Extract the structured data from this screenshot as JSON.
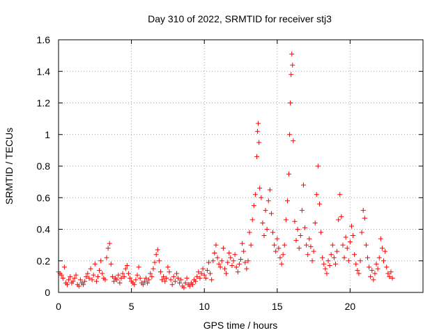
{
  "chart_data": {
    "type": "scatter",
    "title": "Day 310 of 2022, SRMTID for receiver stj3",
    "xlabel": "GPS time / hours",
    "ylabel": "SRMTID / TECUs",
    "xlim": [
      0,
      25
    ],
    "ylim": [
      0,
      1.6
    ],
    "xticks": [
      0,
      5,
      10,
      15,
      20
    ],
    "xtick_labels": [
      "0",
      "5",
      "10",
      "15",
      "20"
    ],
    "yticks": [
      0,
      0.2,
      0.4,
      0.6,
      0.8,
      1.0,
      1.2,
      1.4,
      1.6
    ],
    "ytick_labels": [
      "0",
      "0.2",
      "0.4",
      "0.6",
      "0.8",
      "1",
      "1.2",
      "1.4",
      "1.6"
    ],
    "grid": true,
    "marker": "plus",
    "series": [
      {
        "name": "SRMTID",
        "color": "#ff0000",
        "points": [
          [
            0.0,
            0.13
          ],
          [
            0.1,
            0.12
          ],
          [
            0.2,
            0.11
          ],
          [
            0.3,
            0.09
          ],
          [
            0.4,
            0.16
          ],
          [
            0.5,
            0.06
          ],
          [
            0.6,
            0.05
          ],
          [
            0.7,
            0.08
          ],
          [
            0.8,
            0.1
          ],
          [
            0.9,
            0.06
          ],
          [
            1.0,
            0.07
          ],
          [
            1.1,
            0.09
          ],
          [
            1.2,
            0.11
          ],
          [
            1.3,
            0.05
          ],
          [
            1.4,
            0.04
          ],
          [
            1.5,
            0.08
          ],
          [
            1.6,
            0.06
          ],
          [
            1.7,
            0.05
          ],
          [
            1.8,
            0.07
          ],
          [
            1.9,
            0.1
          ],
          [
            2.0,
            0.12
          ],
          [
            2.1,
            0.09
          ],
          [
            2.2,
            0.15
          ],
          [
            2.3,
            0.08
          ],
          [
            2.4,
            0.11
          ],
          [
            2.5,
            0.18
          ],
          [
            2.6,
            0.07
          ],
          [
            2.7,
            0.1
          ],
          [
            2.8,
            0.14
          ],
          [
            2.9,
            0.2
          ],
          [
            3.0,
            0.12
          ],
          [
            3.1,
            0.09
          ],
          [
            3.2,
            0.08
          ],
          [
            3.3,
            0.22
          ],
          [
            3.4,
            0.28
          ],
          [
            3.5,
            0.31
          ],
          [
            3.6,
            0.18
          ],
          [
            3.7,
            0.1
          ],
          [
            3.8,
            0.07
          ],
          [
            3.9,
            0.09
          ],
          [
            4.0,
            0.08
          ],
          [
            4.1,
            0.11
          ],
          [
            4.2,
            0.06
          ],
          [
            4.3,
            0.09
          ],
          [
            4.4,
            0.12
          ],
          [
            4.5,
            0.1
          ],
          [
            4.6,
            0.15
          ],
          [
            4.7,
            0.17
          ],
          [
            4.8,
            0.12
          ],
          [
            4.9,
            0.09
          ],
          [
            5.0,
            0.07
          ],
          [
            5.1,
            0.06
          ],
          [
            5.2,
            0.05
          ],
          [
            5.3,
            0.08
          ],
          [
            5.4,
            0.11
          ],
          [
            5.5,
            0.16
          ],
          [
            5.6,
            0.09
          ],
          [
            5.7,
            0.06
          ],
          [
            5.8,
            0.05
          ],
          [
            5.9,
            0.07
          ],
          [
            6.0,
            0.09
          ],
          [
            6.1,
            0.06
          ],
          [
            6.2,
            0.08
          ],
          [
            6.3,
            0.12
          ],
          [
            6.4,
            0.1
          ],
          [
            6.5,
            0.15
          ],
          [
            6.6,
            0.19
          ],
          [
            6.7,
            0.24
          ],
          [
            6.8,
            0.27
          ],
          [
            6.9,
            0.2
          ],
          [
            7.0,
            0.13
          ],
          [
            7.1,
            0.08
          ],
          [
            7.2,
            0.1
          ],
          [
            7.3,
            0.07
          ],
          [
            7.4,
            0.09
          ],
          [
            7.5,
            0.16
          ],
          [
            7.6,
            0.13
          ],
          [
            7.7,
            0.08
          ],
          [
            7.8,
            0.05
          ],
          [
            7.9,
            0.1
          ],
          [
            8.0,
            0.07
          ],
          [
            8.1,
            0.12
          ],
          [
            8.2,
            0.09
          ],
          [
            8.3,
            0.06
          ],
          [
            8.4,
            0.08
          ],
          [
            8.5,
            0.04
          ],
          [
            8.6,
            0.03
          ],
          [
            8.7,
            0.06
          ],
          [
            8.8,
            0.09
          ],
          [
            8.9,
            0.05
          ],
          [
            9.0,
            0.04
          ],
          [
            9.1,
            0.06
          ],
          [
            9.2,
            0.05
          ],
          [
            9.3,
            0.08
          ],
          [
            9.4,
            0.07
          ],
          [
            9.5,
            0.1
          ],
          [
            9.6,
            0.13
          ],
          [
            9.7,
            0.09
          ],
          [
            9.8,
            0.12
          ],
          [
            9.9,
            0.15
          ],
          [
            10.0,
            0.11
          ],
          [
            10.1,
            0.09
          ],
          [
            10.2,
            0.14
          ],
          [
            10.3,
            0.19
          ],
          [
            10.4,
            0.12
          ],
          [
            10.5,
            0.08
          ],
          [
            10.6,
            0.2
          ],
          [
            10.7,
            0.25
          ],
          [
            10.8,
            0.3
          ],
          [
            10.9,
            0.22
          ],
          [
            11.0,
            0.18
          ],
          [
            11.1,
            0.16
          ],
          [
            11.2,
            0.2
          ],
          [
            11.3,
            0.28
          ],
          [
            11.4,
            0.15
          ],
          [
            11.5,
            0.12
          ],
          [
            11.6,
            0.19
          ],
          [
            11.7,
            0.25
          ],
          [
            11.8,
            0.22
          ],
          [
            11.9,
            0.17
          ],
          [
            12.0,
            0.2
          ],
          [
            12.1,
            0.24
          ],
          [
            12.2,
            0.16
          ],
          [
            12.3,
            0.13
          ],
          [
            12.4,
            0.18
          ],
          [
            12.5,
            0.21
          ],
          [
            12.6,
            0.31
          ],
          [
            12.7,
            0.26
          ],
          [
            12.8,
            0.19
          ],
          [
            12.9,
            0.15
          ],
          [
            13.0,
            0.2
          ],
          [
            13.1,
            0.38
          ],
          [
            13.2,
            0.3
          ],
          [
            13.3,
            0.46
          ],
          [
            13.4,
            0.55
          ],
          [
            13.5,
            0.62
          ],
          [
            13.6,
            0.86
          ],
          [
            13.65,
            1.02
          ],
          [
            13.7,
            1.07
          ],
          [
            13.75,
            0.95
          ],
          [
            13.8,
            0.66
          ],
          [
            13.9,
            0.6
          ],
          [
            14.0,
            0.44
          ],
          [
            14.1,
            0.36
          ],
          [
            14.2,
            0.52
          ],
          [
            14.3,
            0.4
          ],
          [
            14.4,
            0.58
          ],
          [
            14.5,
            0.65
          ],
          [
            14.6,
            0.5
          ],
          [
            14.7,
            0.38
          ],
          [
            14.8,
            0.3
          ],
          [
            14.9,
            0.26
          ],
          [
            15.0,
            0.34
          ],
          [
            15.1,
            0.28
          ],
          [
            15.2,
            0.22
          ],
          [
            15.3,
            0.18
          ],
          [
            15.4,
            0.24
          ],
          [
            15.5,
            0.3
          ],
          [
            15.6,
            0.46
          ],
          [
            15.7,
            0.58
          ],
          [
            15.8,
            0.75
          ],
          [
            15.85,
            1.0
          ],
          [
            15.9,
            1.2
          ],
          [
            15.95,
            1.38
          ],
          [
            16.0,
            1.51
          ],
          [
            16.05,
            1.44
          ],
          [
            16.1,
            0.96
          ],
          [
            16.2,
            0.45
          ],
          [
            16.3,
            0.33
          ],
          [
            16.4,
            0.4
          ],
          [
            16.5,
            0.28
          ],
          [
            16.6,
            0.36
          ],
          [
            16.7,
            0.52
          ],
          [
            16.8,
            0.68
          ],
          [
            16.9,
            0.41
          ],
          [
            17.0,
            0.3
          ],
          [
            17.1,
            0.24
          ],
          [
            17.2,
            0.34
          ],
          [
            17.3,
            0.29
          ],
          [
            17.4,
            0.2
          ],
          [
            17.5,
            0.26
          ],
          [
            17.6,
            0.44
          ],
          [
            17.7,
            0.62
          ],
          [
            17.8,
            0.8
          ],
          [
            17.9,
            0.56
          ],
          [
            18.0,
            0.38
          ],
          [
            18.1,
            0.22
          ],
          [
            18.2,
            0.18
          ],
          [
            18.3,
            0.15
          ],
          [
            18.4,
            0.12
          ],
          [
            18.5,
            0.2
          ],
          [
            18.6,
            0.17
          ],
          [
            18.7,
            0.24
          ],
          [
            18.8,
            0.3
          ],
          [
            18.9,
            0.22
          ],
          [
            19.0,
            0.18
          ],
          [
            19.1,
            0.26
          ],
          [
            19.2,
            0.46
          ],
          [
            19.3,
            0.62
          ],
          [
            19.4,
            0.48
          ],
          [
            19.5,
            0.3
          ],
          [
            19.6,
            0.22
          ],
          [
            19.7,
            0.35
          ],
          [
            19.8,
            0.28
          ],
          [
            19.9,
            0.2
          ],
          [
            20.0,
            0.32
          ],
          [
            20.1,
            0.42
          ],
          [
            20.2,
            0.36
          ],
          [
            20.3,
            0.24
          ],
          [
            20.4,
            0.18
          ],
          [
            20.5,
            0.14
          ],
          [
            20.6,
            0.12
          ],
          [
            20.7,
            0.2
          ],
          [
            20.8,
            0.38
          ],
          [
            20.9,
            0.52
          ],
          [
            21.0,
            0.47
          ],
          [
            21.1,
            0.3
          ],
          [
            21.2,
            0.22
          ],
          [
            21.3,
            0.16
          ],
          [
            21.4,
            0.1
          ],
          [
            21.5,
            0.14
          ],
          [
            21.6,
            0.08
          ],
          [
            21.7,
            0.12
          ],
          [
            21.8,
            0.18
          ],
          [
            21.9,
            0.15
          ],
          [
            22.0,
            0.22
          ],
          [
            22.1,
            0.34
          ],
          [
            22.2,
            0.28
          ],
          [
            22.3,
            0.2
          ],
          [
            22.4,
            0.26
          ],
          [
            22.5,
            0.16
          ],
          [
            22.6,
            0.12
          ],
          [
            22.7,
            0.1
          ],
          [
            22.8,
            0.13
          ],
          [
            22.9,
            0.09
          ]
        ]
      }
    ]
  }
}
